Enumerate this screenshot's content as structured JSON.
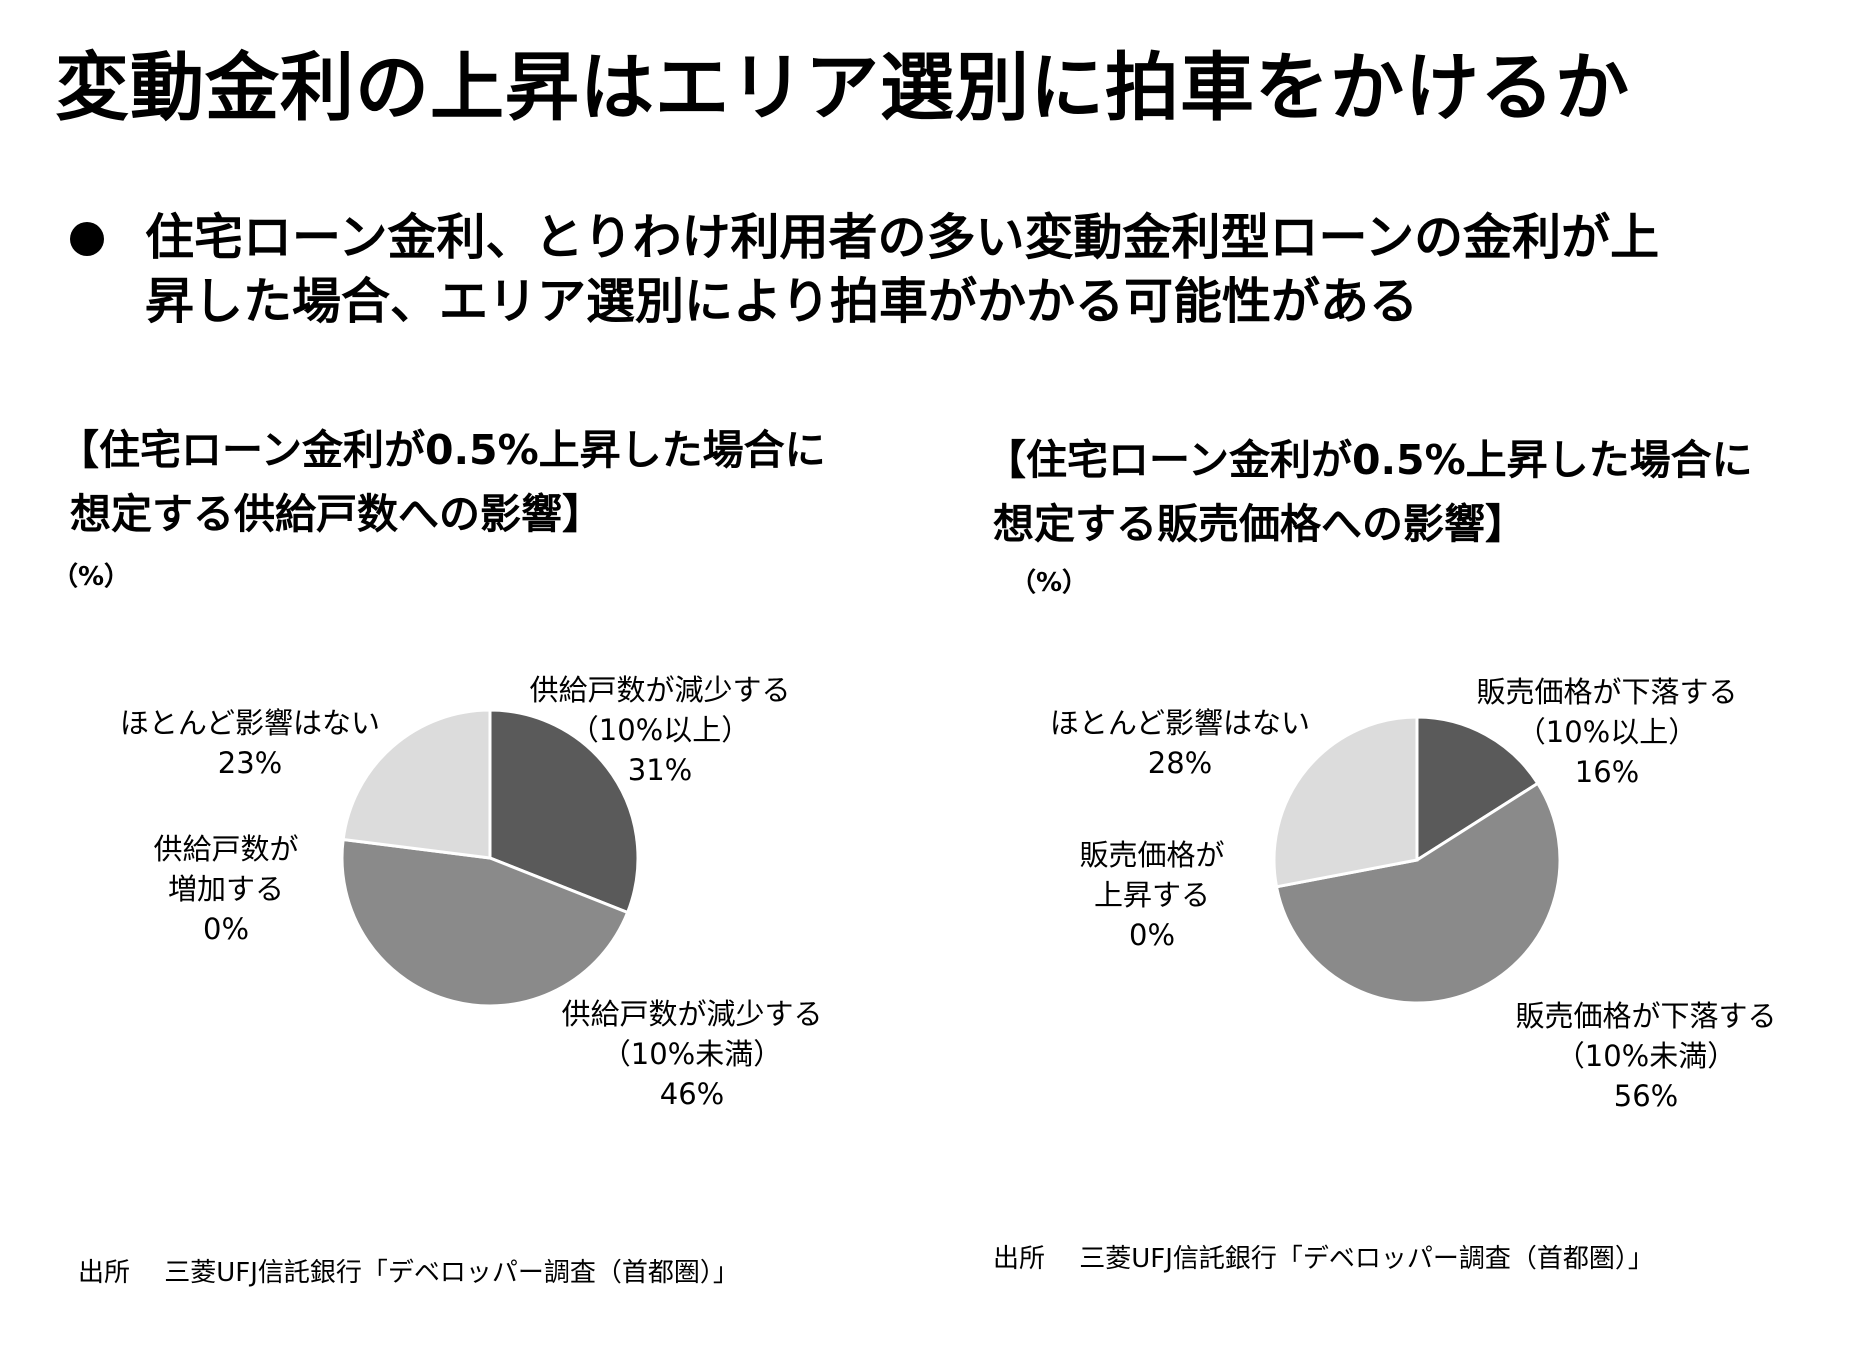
{
  "title": "変動金利の上昇はエリア選別に拍車をかけるか",
  "bullet": {
    "line1": "住宅ローン金利、とりわけ利用者の多い変動金利型ローンの金利が上",
    "line2": "昇した場合、エリア選別により拍車がかかる可能性がある"
  },
  "chart_data": [
    {
      "type": "pie",
      "title_line1": "【住宅ローン金利が0.5%上昇した場合に",
      "title_line2": "想定する供給戸数への影響】",
      "unit": "（%）",
      "source": "出所　 三菱UFJ信託銀行「デベロッパー調査（首都圏）」",
      "slices": [
        {
          "line1": "供給戸数が減少する",
          "line2": "（10%以上）",
          "value": 31,
          "value_label": "31%",
          "color": "#5a5a5a"
        },
        {
          "line1": "供給戸数が減少する",
          "line2": "（10%未満）",
          "value": 46,
          "value_label": "46%",
          "color": "#8a8a8a"
        },
        {
          "line1": "供給戸数が",
          "line2": "増加する",
          "value": 0,
          "value_label": "0%",
          "color": "#b0b0b0"
        },
        {
          "line1": "ほとんど影響はない",
          "line2": "",
          "value": 23,
          "value_label": "23%",
          "color": "#dcdcdc"
        }
      ]
    },
    {
      "type": "pie",
      "title_line1": "【住宅ローン金利が0.5%上昇した場合に",
      "title_line2": "想定する販売価格への影響】",
      "unit": "（%）",
      "source": "出所　 三菱UFJ信託銀行「デベロッパー調査（首都圏）」",
      "slices": [
        {
          "line1": "販売価格が下落する",
          "line2": "（10%以上）",
          "value": 16,
          "value_label": "16%",
          "color": "#5a5a5a"
        },
        {
          "line1": "販売価格が下落する",
          "line2": "（10%未満）",
          "value": 56,
          "value_label": "56%",
          "color": "#8a8a8a"
        },
        {
          "line1": "販売価格が",
          "line2": "上昇する",
          "value": 0,
          "value_label": "0%",
          "color": "#b0b0b0"
        },
        {
          "line1": "ほとんど影響はない",
          "line2": "",
          "value": 28,
          "value_label": "28%",
          "color": "#dcdcdc"
        }
      ]
    }
  ]
}
